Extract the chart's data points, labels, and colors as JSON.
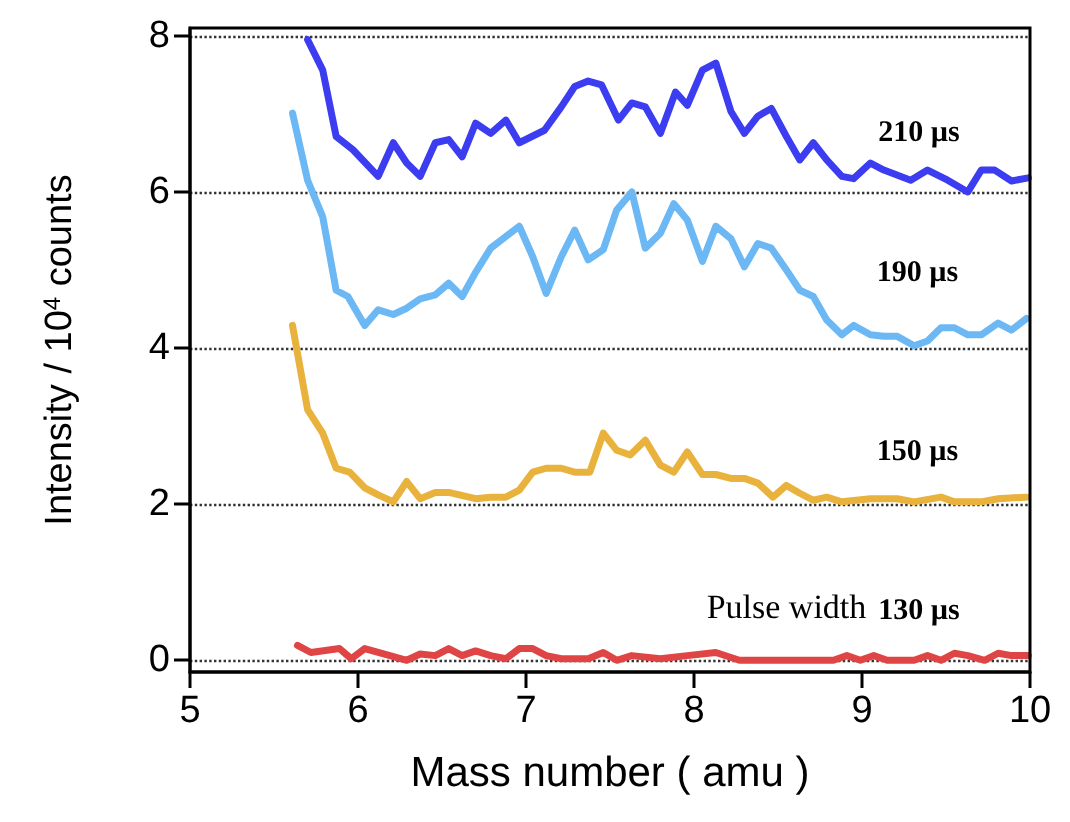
{
  "chart_data": {
    "type": "line",
    "xlabel": "Mass number ( amu )",
    "ylabel": "Intensity / 10$^{4}$ counts",
    "xlim": [
      5,
      10
    ],
    "xticks": [
      5,
      6,
      7,
      8,
      9,
      10
    ],
    "ylim": [
      -0.15,
      8.1
    ],
    "yticks": [
      0,
      2,
      4,
      6,
      8
    ],
    "grid": "y",
    "annotations": [
      "Pulse width"
    ],
    "series": [
      {
        "name": "210 µs",
        "color": "#3c3cf0",
        "x": [
          5.7,
          5.79,
          5.87,
          5.97,
          6.12,
          6.21,
          6.29,
          6.37,
          6.46,
          6.54,
          6.62,
          6.7,
          6.79,
          6.88,
          6.96,
          7.11,
          7.21,
          7.29,
          7.37,
          7.45,
          7.55,
          7.63,
          7.71,
          7.8,
          7.89,
          7.96,
          8.05,
          8.13,
          8.22,
          8.3,
          8.38,
          8.46,
          8.55,
          8.63,
          8.71,
          8.79,
          8.88,
          8.95,
          9.05,
          9.13,
          9.29,
          9.39,
          9.51,
          9.63,
          9.71,
          9.79,
          9.89,
          9.99
        ],
        "values": [
          7.95,
          7.56,
          6.71,
          6.54,
          6.2,
          6.63,
          6.37,
          6.2,
          6.63,
          6.67,
          6.45,
          6.88,
          6.75,
          6.92,
          6.63,
          6.79,
          7.09,
          7.35,
          7.42,
          7.37,
          6.92,
          7.14,
          7.09,
          6.75,
          7.28,
          7.11,
          7.56,
          7.65,
          7.03,
          6.75,
          6.97,
          7.07,
          6.71,
          6.41,
          6.63,
          6.41,
          6.2,
          6.17,
          6.37,
          6.28,
          6.15,
          6.28,
          6.15,
          6.0,
          6.28,
          6.28,
          6.14,
          6.18
        ]
      },
      {
        "name": "190 µs",
        "color": "#6cb8f5",
        "x": [
          5.61,
          5.7,
          5.79,
          5.87,
          5.94,
          6.04,
          6.12,
          6.21,
          6.29,
          6.37,
          6.46,
          6.54,
          6.62,
          6.7,
          6.79,
          6.88,
          6.96,
          7.04,
          7.12,
          7.21,
          7.29,
          7.37,
          7.46,
          7.54,
          7.63,
          7.71,
          7.8,
          7.88,
          7.96,
          8.05,
          8.13,
          8.22,
          8.3,
          8.38,
          8.46,
          8.55,
          8.63,
          8.71,
          8.79,
          8.88,
          8.95,
          9.05,
          9.13,
          9.21,
          9.31,
          9.39,
          9.47,
          9.55,
          9.63,
          9.71,
          9.81,
          9.89,
          9.98
        ],
        "values": [
          7.01,
          6.15,
          5.68,
          4.74,
          4.66,
          4.29,
          4.49,
          4.43,
          4.51,
          4.63,
          4.68,
          4.83,
          4.66,
          4.97,
          5.28,
          5.43,
          5.56,
          5.17,
          4.7,
          5.17,
          5.51,
          5.13,
          5.26,
          5.77,
          6.0,
          5.28,
          5.47,
          5.85,
          5.64,
          5.11,
          5.56,
          5.4,
          5.04,
          5.34,
          5.28,
          5.0,
          4.74,
          4.66,
          4.36,
          4.17,
          4.29,
          4.17,
          4.15,
          4.15,
          4.03,
          4.09,
          4.26,
          4.26,
          4.17,
          4.17,
          4.32,
          4.23,
          4.38
        ]
      },
      {
        "name": "150 µs",
        "color": "#e9b23c",
        "x": [
          5.61,
          5.7,
          5.79,
          5.87,
          5.95,
          6.04,
          6.12,
          6.21,
          6.29,
          6.37,
          6.46,
          6.54,
          6.7,
          6.79,
          6.88,
          6.96,
          7.04,
          7.12,
          7.21,
          7.29,
          7.38,
          7.46,
          7.54,
          7.62,
          7.71,
          7.8,
          7.88,
          7.96,
          8.05,
          8.13,
          8.22,
          8.3,
          8.38,
          8.47,
          8.55,
          8.63,
          8.71,
          8.79,
          8.88,
          9.05,
          9.21,
          9.31,
          9.47,
          9.55,
          9.71,
          9.81,
          9.98
        ],
        "values": [
          4.29,
          3.21,
          2.91,
          2.46,
          2.41,
          2.21,
          2.12,
          2.03,
          2.29,
          2.07,
          2.15,
          2.15,
          2.07,
          2.09,
          2.09,
          2.18,
          2.41,
          2.46,
          2.46,
          2.41,
          2.41,
          2.91,
          2.69,
          2.63,
          2.82,
          2.5,
          2.41,
          2.67,
          2.38,
          2.38,
          2.33,
          2.33,
          2.27,
          2.09,
          2.24,
          2.14,
          2.05,
          2.09,
          2.03,
          2.07,
          2.07,
          2.03,
          2.09,
          2.03,
          2.03,
          2.07,
          2.09
        ]
      },
      {
        "name": "130 µs",
        "color": "#e04545",
        "x": [
          5.64,
          5.72,
          5.89,
          5.96,
          6.04,
          6.19,
          6.29,
          6.37,
          6.46,
          6.54,
          6.62,
          6.7,
          6.79,
          6.88,
          6.96,
          7.04,
          7.12,
          7.21,
          7.37,
          7.46,
          7.54,
          7.63,
          7.8,
          7.96,
          8.13,
          8.27,
          8.55,
          8.83,
          8.91,
          8.99,
          9.07,
          9.15,
          9.31,
          9.39,
          9.47,
          9.55,
          9.63,
          9.73,
          9.81,
          9.89,
          9.99
        ],
        "values": [
          0.19,
          0.1,
          0.15,
          0.02,
          0.15,
          0.06,
          0.0,
          0.08,
          0.06,
          0.15,
          0.06,
          0.12,
          0.06,
          0.02,
          0.15,
          0.15,
          0.06,
          0.02,
          0.02,
          0.1,
          0.0,
          0.06,
          0.02,
          0.06,
          0.1,
          0.0,
          0.0,
          0.0,
          0.06,
          0.0,
          0.06,
          0.0,
          0.0,
          0.06,
          0.0,
          0.09,
          0.06,
          0.0,
          0.09,
          0.06,
          0.06
        ]
      }
    ]
  }
}
